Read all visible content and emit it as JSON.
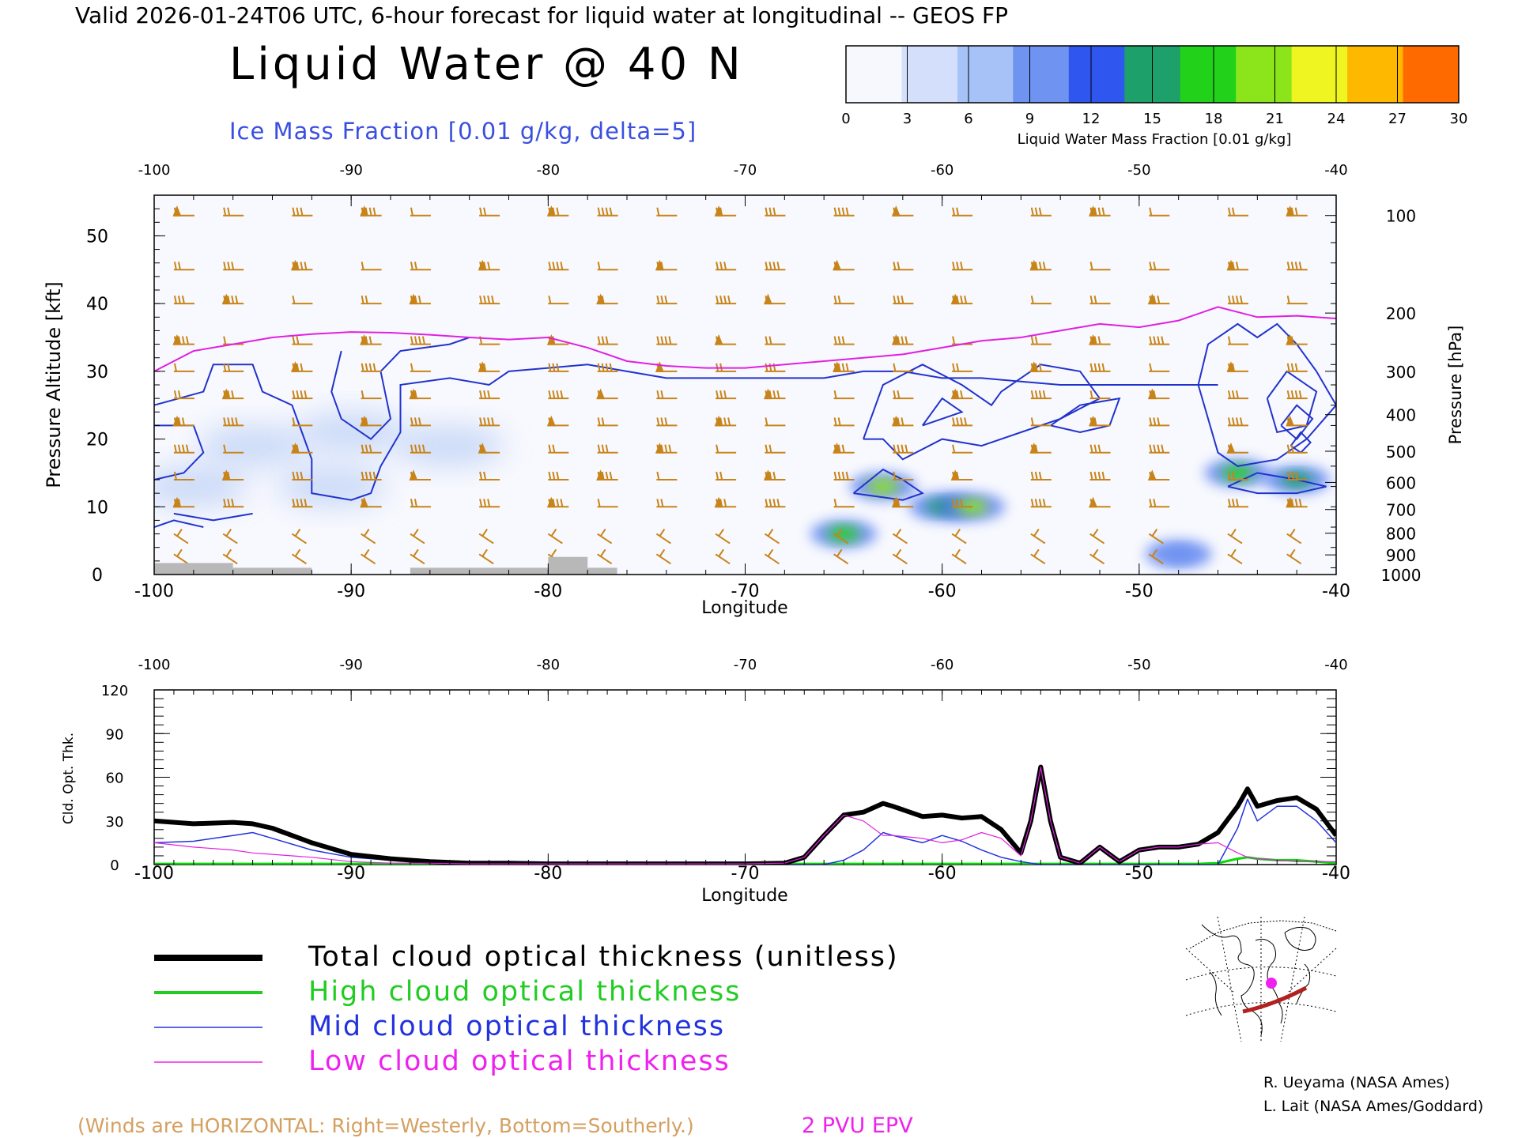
{
  "header": {
    "valid_line": "Valid 2026-01-24T06 UTC, 6-hour forecast for liquid water at longitudinal -- GEOS FP",
    "title": "Liquid Water @ 40 N",
    "subtitle": "Ice Mass Fraction [0.01 g/kg, delta=5]"
  },
  "colorbar": {
    "ticks": [
      "0",
      "3",
      "6",
      "9",
      "12",
      "15",
      "18",
      "21",
      "24",
      "27",
      "30"
    ],
    "label": "Liquid Water Mass Fraction [0.01 g/kg]",
    "colors": [
      "#f6f8fd",
      "#d4e0fb",
      "#a7c2f6",
      "#6e93f1",
      "#2f56ee",
      "#1ea06a",
      "#22d11a",
      "#8ce51a",
      "#eef520",
      "#ffb800",
      "#ff6a00"
    ]
  },
  "chart_data": [
    {
      "type": "heatmap",
      "name": "upper",
      "title": "Liquid Water @ 40 N",
      "xlabel": "Longitude",
      "ylabel": "Pressure Altitude [kft]",
      "ylabel_right": "Pressure [hPa]",
      "xlim": [
        -100,
        -40
      ],
      "ylim": [
        0,
        56
      ],
      "x_ticks": [
        "-100",
        "-90",
        "-80",
        "-70",
        "-60",
        "-50",
        "-40"
      ],
      "y_ticks": [
        "0",
        "10",
        "20",
        "30",
        "40",
        "50"
      ],
      "pressure_ticks": [
        {
          "label": "100",
          "kft": 53
        },
        {
          "label": "200",
          "kft": 38.6
        },
        {
          "label": "300",
          "kft": 30
        },
        {
          "label": "400",
          "kft": 23.6
        },
        {
          "label": "500",
          "kft": 18.2
        },
        {
          "label": "600",
          "kft": 13.6
        },
        {
          "label": "700",
          "kft": 9.6
        },
        {
          "label": "800",
          "kft": 6.1
        },
        {
          "label": "900",
          "kft": 2.9
        },
        {
          "label": "1000",
          "kft": 0
        }
      ],
      "liquid_water_blobs": [
        {
          "lon": -98,
          "kft": 13,
          "value": 3
        },
        {
          "lon": -95,
          "kft": 19,
          "value": 3
        },
        {
          "lon": -91,
          "kft": 13,
          "value": 2
        },
        {
          "lon": -90,
          "kft": 21,
          "value": 2
        },
        {
          "lon": -85,
          "kft": 19,
          "value": 3
        },
        {
          "lon": -65,
          "kft": 6,
          "value": 18
        },
        {
          "lon": -63,
          "kft": 13,
          "value": 21
        },
        {
          "lon": -60,
          "kft": 10,
          "value": 15
        },
        {
          "lon": -58.5,
          "kft": 10,
          "value": 21
        },
        {
          "lon": -48,
          "kft": 3,
          "value": 9
        },
        {
          "lon": -45,
          "kft": 15,
          "value": 18
        },
        {
          "lon": -42,
          "kft": 14,
          "value": 16
        }
      ],
      "pvu2_line": {
        "lon": [
          -100,
          -98,
          -96,
          -94,
          -92,
          -90,
          -88,
          -86,
          -84,
          -82,
          -80,
          -78,
          -76,
          -74,
          -72,
          -70,
          -68,
          -66,
          -64,
          -62,
          -60,
          -58,
          -56,
          -54,
          -52,
          -50,
          -48,
          -46,
          -44,
          -42,
          -40
        ],
        "kft": [
          30,
          33,
          34,
          35,
          35.5,
          35.8,
          35.7,
          35.4,
          35,
          34.7,
          35,
          33.5,
          31.5,
          30.8,
          30.5,
          30.5,
          31,
          31.5,
          32,
          32.5,
          33.5,
          34.5,
          35,
          36,
          37,
          36.5,
          37.5,
          39.5,
          38,
          38.2,
          37.8
        ]
      },
      "surface_elevation": [
        {
          "lon_from": -100,
          "lon_to": -96,
          "kft": 1.7
        },
        {
          "lon_from": -96,
          "lon_to": -92,
          "kft": 1
        },
        {
          "lon_from": -87,
          "lon_to": -80,
          "kft": 1
        },
        {
          "lon_from": -80,
          "lon_to": -78,
          "kft": 2.6
        },
        {
          "lon_from": -78,
          "lon_to": -76.5,
          "kft": 1
        }
      ],
      "annotations": [
        "(Winds are HORIZONTAL: Right=Westerly, Bottom=Southerly.)",
        "2 PVU EPV"
      ]
    },
    {
      "type": "line",
      "name": "lower",
      "xlabel": "Longitude",
      "ylabel": "Cld. Opt. Thk.",
      "xlim": [
        -100,
        -40
      ],
      "ylim": [
        0,
        120
      ],
      "x_ticks": [
        "-100",
        "-90",
        "-80",
        "-70",
        "-60",
        "-50",
        "-40"
      ],
      "y_ticks": [
        "0",
        "30",
        "60",
        "90",
        "120"
      ],
      "x": [
        -100,
        -98,
        -96,
        -95,
        -94,
        -92,
        -90,
        -88,
        -86,
        -84,
        -82,
        -80,
        -78,
        -76,
        -74,
        -72,
        -70,
        -68,
        -67,
        -66,
        -65,
        -64,
        -63,
        -62.5,
        -61,
        -60,
        -59,
        -58,
        -57,
        -56,
        -55.5,
        -55,
        -54.5,
        -54,
        -53,
        -52,
        -51,
        -50,
        -49,
        -48,
        -47,
        -46,
        -45,
        -44.5,
        -44,
        -43,
        -42,
        -41,
        -40
      ],
      "series": [
        {
          "name": "Total cloud optical thickness (unitless)",
          "color": "#000000",
          "values": [
            30,
            28,
            29,
            28,
            25,
            15,
            7,
            4,
            2,
            1,
            1,
            0.5,
            0.5,
            0.5,
            0.5,
            0.5,
            0.5,
            1,
            5,
            20,
            34,
            36,
            42,
            40,
            33,
            34,
            32,
            33,
            24,
            8,
            30,
            67,
            30,
            5,
            1,
            12,
            2,
            10,
            12,
            12,
            14,
            22,
            40,
            52,
            40,
            44,
            46,
            38,
            20
          ]
        },
        {
          "name": "High cloud optical thickness",
          "color": "#00dd00",
          "values": [
            0.5,
            0.5,
            0.5,
            0.5,
            0.5,
            0.5,
            0.5,
            0.5,
            0.5,
            0.5,
            0.5,
            0.5,
            0.5,
            0.5,
            0.5,
            0.5,
            0.5,
            0.5,
            0.5,
            0.5,
            0.5,
            0.5,
            0.5,
            0.5,
            0.5,
            0.5,
            0.5,
            0.5,
            0.5,
            0.5,
            0.5,
            0.5,
            0.5,
            0.5,
            0.5,
            0.5,
            0.5,
            0.5,
            0.5,
            0.5,
            0.5,
            1,
            4,
            5,
            4,
            3,
            3,
            2,
            1
          ]
        },
        {
          "name": "Mid cloud optical thickness",
          "color": "#2233dd",
          "values": [
            15,
            16,
            20,
            22,
            18,
            10,
            5,
            3,
            1,
            0.5,
            0,
            0,
            0,
            0,
            0,
            0,
            0,
            0,
            0,
            0,
            3,
            10,
            22,
            20,
            15,
            20,
            16,
            10,
            5,
            2,
            1,
            0,
            0,
            0,
            0,
            0,
            0,
            0,
            0,
            0,
            0,
            0,
            25,
            45,
            30,
            40,
            40,
            30,
            15
          ]
        },
        {
          "name": "Low cloud optical thickness",
          "color": "#e020e0",
          "values": [
            15,
            12,
            10,
            8,
            7,
            5,
            2,
            1,
            1,
            0.5,
            0.5,
            0.5,
            0.5,
            0.5,
            0.5,
            0.5,
            0.5,
            1,
            5,
            20,
            34,
            30,
            20,
            20,
            18,
            15,
            17,
            22,
            18,
            6,
            30,
            67,
            30,
            5,
            1,
            12,
            2,
            10,
            12,
            12,
            14,
            15,
            8,
            5,
            4,
            3,
            2,
            2,
            2
          ]
        }
      ]
    }
  ],
  "legend": {
    "entries": [
      {
        "label": "Total cloud optical thickness (unitless)",
        "color": "#000000"
      },
      {
        "label": "High cloud optical thickness",
        "color": "#22cc22"
      },
      {
        "label": "Mid cloud optical thickness",
        "color": "#2233dd"
      },
      {
        "label": "Low cloud optical thickness",
        "color": "#ee22ee"
      }
    ]
  },
  "footer": {
    "winds_note": "(Winds are HORIZONTAL: Right=Westerly, Bottom=Southerly.)",
    "pvu_note": "2 PVU EPV",
    "credit1": "R. Ueyama (NASA Ames)",
    "credit2": "L. Lait (NASA Ames/Goddard)"
  },
  "map": {
    "icon": "globe-map-icon"
  }
}
